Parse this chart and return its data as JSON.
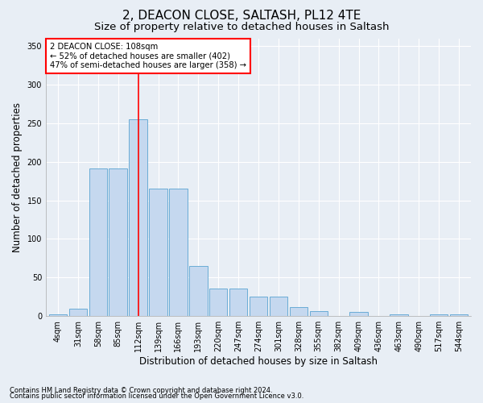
{
  "title1": "2, DEACON CLOSE, SALTASH, PL12 4TE",
  "title2": "Size of property relative to detached houses in Saltash",
  "xlabel": "Distribution of detached houses by size in Saltash",
  "ylabel": "Number of detached properties",
  "categories": [
    "4sqm",
    "31sqm",
    "58sqm",
    "85sqm",
    "112sqm",
    "139sqm",
    "166sqm",
    "193sqm",
    "220sqm",
    "247sqm",
    "274sqm",
    "301sqm",
    "328sqm",
    "355sqm",
    "382sqm",
    "409sqm",
    "436sqm",
    "463sqm",
    "490sqm",
    "517sqm",
    "544sqm"
  ],
  "values": [
    2,
    10,
    191,
    191,
    255,
    165,
    165,
    65,
    36,
    36,
    25,
    25,
    12,
    7,
    0,
    5,
    0,
    2,
    0,
    2,
    2
  ],
  "bar_color": "#c5d8ef",
  "bar_edge_color": "#6aacd6",
  "red_line_index": 4,
  "annotation_title": "2 DEACON CLOSE: 108sqm",
  "annotation_line2": "← 52% of detached houses are smaller (402)",
  "annotation_line3": "47% of semi-detached houses are larger (358) →",
  "ylim": [
    0,
    360
  ],
  "yticks": [
    0,
    50,
    100,
    150,
    200,
    250,
    300,
    350
  ],
  "footnote1": "Contains HM Land Registry data © Crown copyright and database right 2024.",
  "footnote2": "Contains public sector information licensed under the Open Government Licence v3.0.",
  "bg_color": "#e8eef5",
  "plot_bg_color": "#e8eef5",
  "grid_color": "#ffffff",
  "title_fontsize": 11,
  "subtitle_fontsize": 9.5,
  "tick_fontsize": 7,
  "label_fontsize": 8.5,
  "footnote_fontsize": 6
}
